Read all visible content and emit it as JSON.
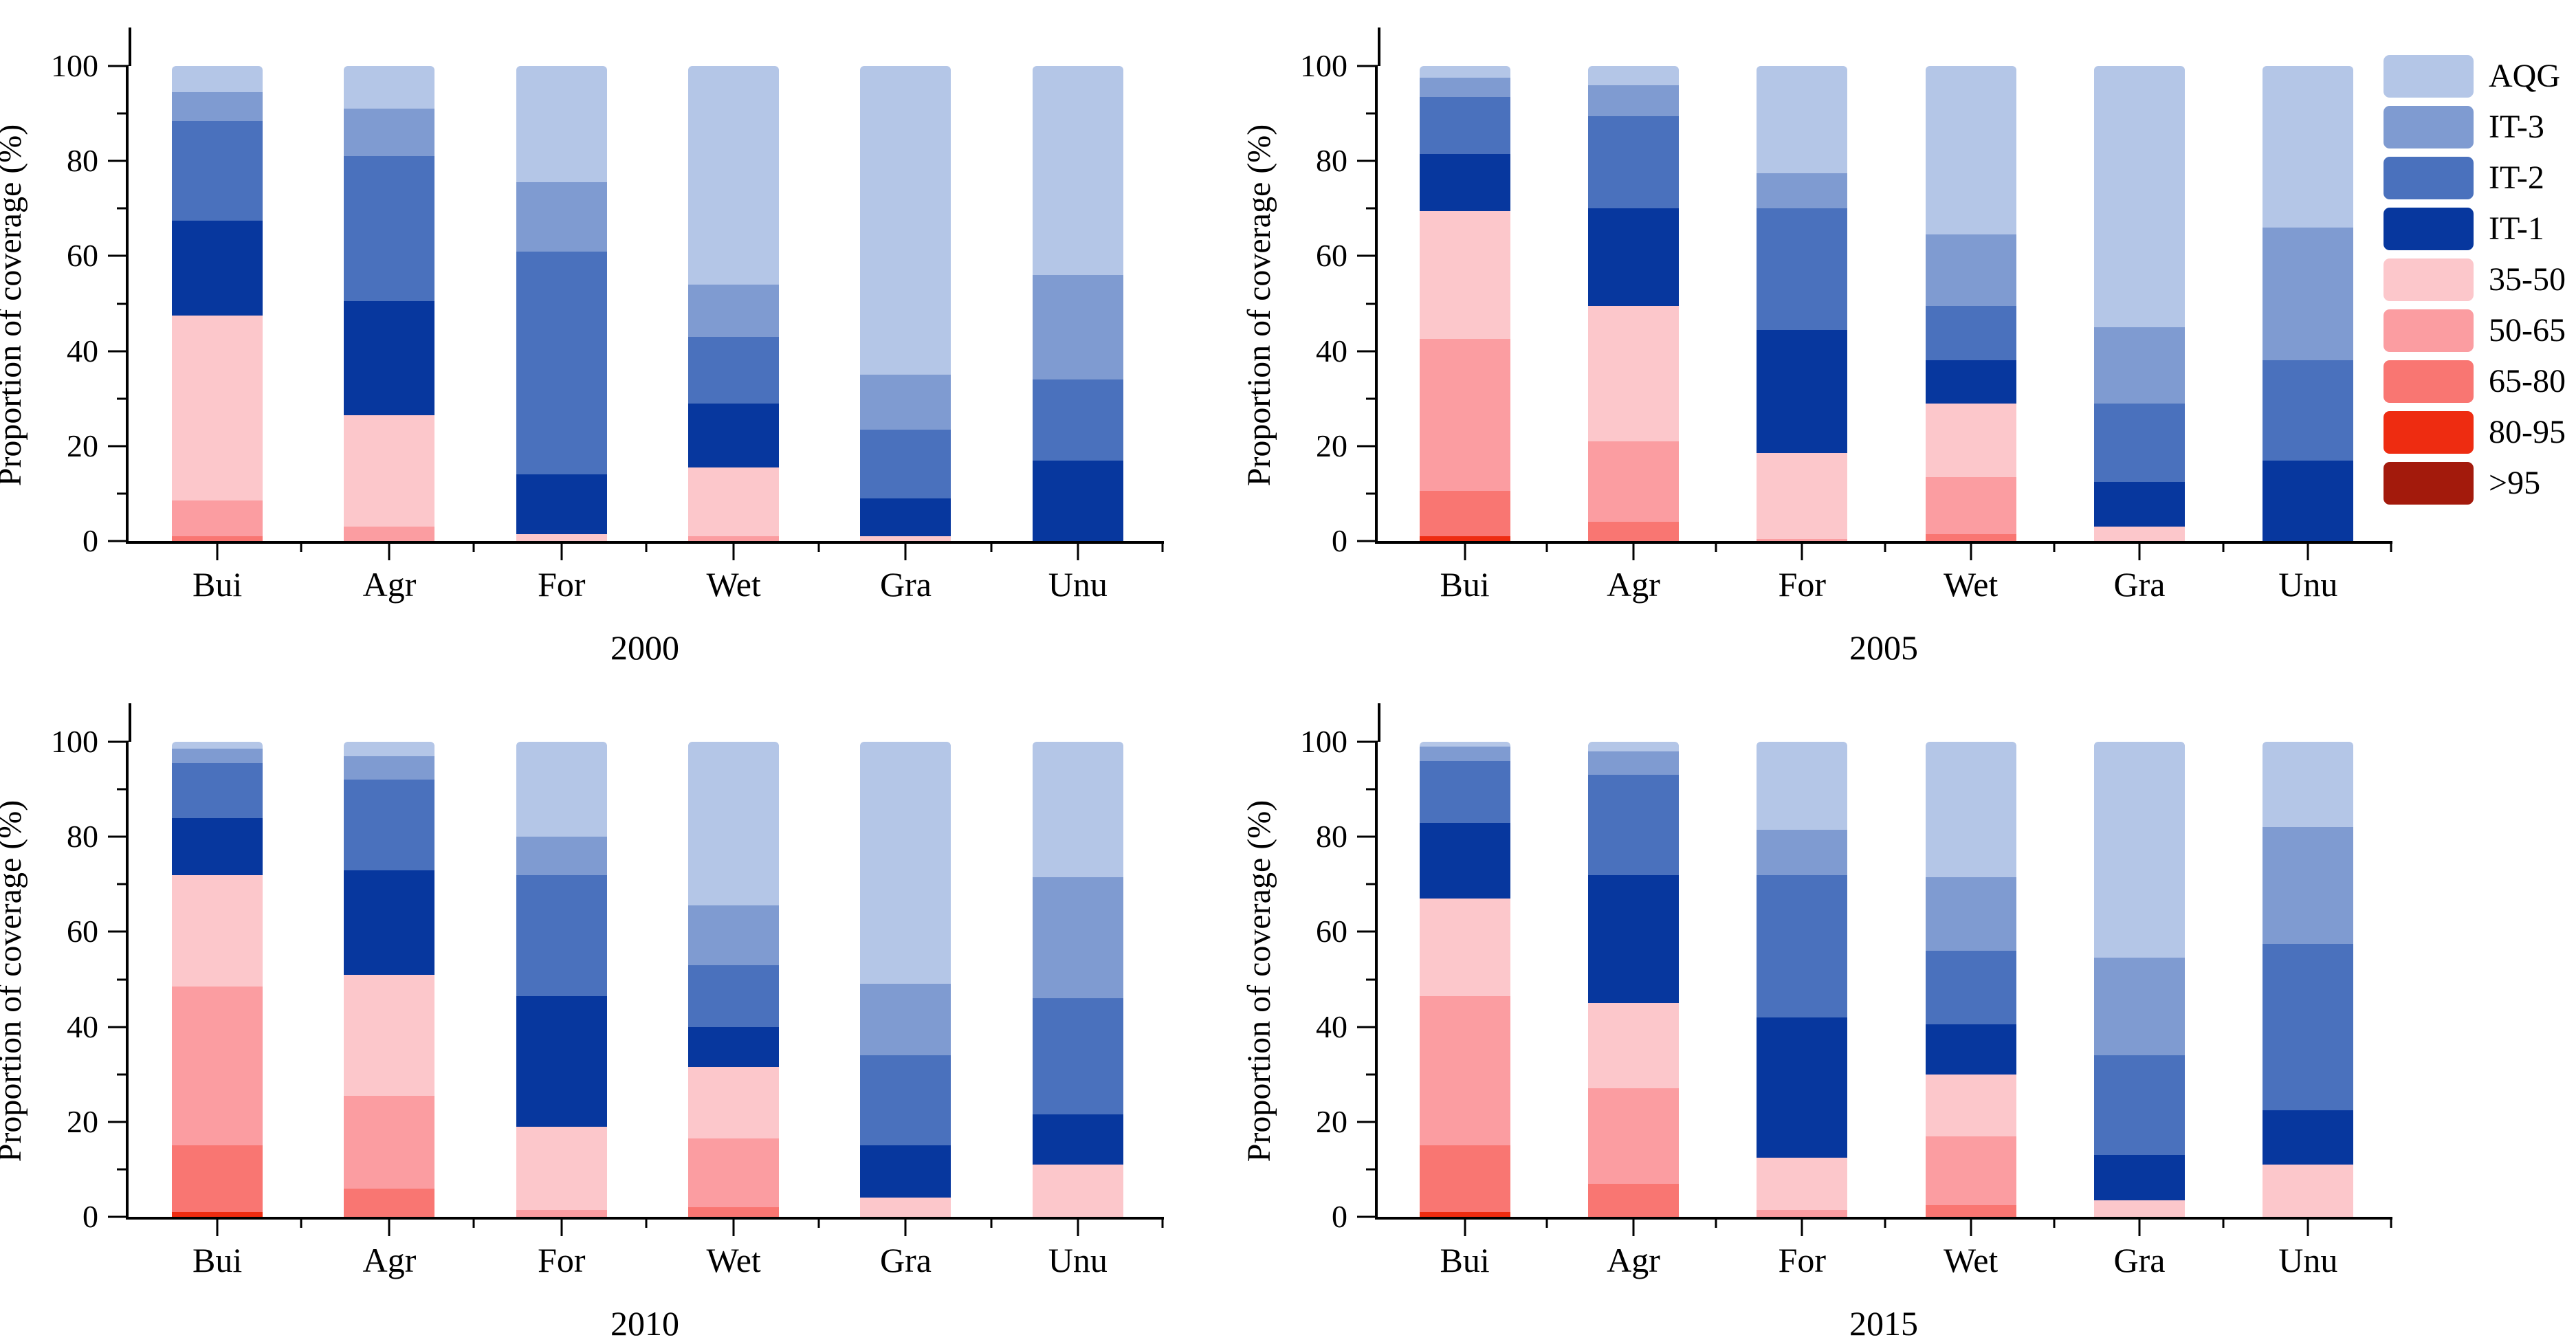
{
  "figure": {
    "ylabel": "Proportion of coverage (%)",
    "categories": [
      "Bui",
      "Agr",
      "For",
      "Wet",
      "Gra",
      "Unu"
    ],
    "yticks": [
      0,
      20,
      40,
      60,
      80,
      100
    ]
  },
  "colors": {
    "AQG": "#b4c6e7",
    "IT-3": "#7f9bd1",
    "IT-2": "#4a71bd",
    "IT-1": "#07379e",
    "35-50": "#fcc7cb",
    "50-65": "#fb9da1",
    "65-80": "#f97672",
    "80-95": "#ee2c11",
    ">95": "#a31a0c"
  },
  "legend": {
    "entries": [
      "AQG",
      "IT-3",
      "IT-2",
      "IT-1",
      "35-50",
      "50-65",
      "65-80",
      "80-95",
      ">95"
    ]
  },
  "chart_data": [
    {
      "type": "bar",
      "stacked": true,
      "year": "2000",
      "title": "2000",
      "xlabel": "",
      "ylabel": "Proportion of coverage (%)",
      "ylim": [
        0,
        100
      ],
      "yticks": [
        0,
        20,
        40,
        60,
        80,
        100
      ],
      "categories": [
        "Bui",
        "Agr",
        "For",
        "Wet",
        "Gra",
        "Unu"
      ],
      "series": [
        {
          "name": ">95",
          "values": [
            0,
            0,
            0,
            0,
            0,
            0
          ]
        },
        {
          "name": "80-95",
          "values": [
            0,
            0,
            0,
            0,
            0,
            0
          ]
        },
        {
          "name": "65-80",
          "values": [
            1,
            0,
            0,
            0,
            0,
            0
          ]
        },
        {
          "name": "50-65",
          "values": [
            7.5,
            3,
            0,
            1,
            0,
            0
          ]
        },
        {
          "name": "35-50",
          "values": [
            39,
            23.5,
            1.5,
            14.5,
            1,
            0
          ]
        },
        {
          "name": "IT-1",
          "values": [
            20,
            24,
            12.5,
            13.5,
            8,
            17
          ]
        },
        {
          "name": "IT-2",
          "values": [
            21,
            30.5,
            47,
            14,
            14.5,
            17
          ]
        },
        {
          "name": "IT-3",
          "values": [
            6,
            10,
            14.5,
            11,
            11.5,
            22
          ]
        },
        {
          "name": "AQG",
          "values": [
            5.5,
            9,
            24.5,
            46,
            65,
            44
          ]
        }
      ]
    },
    {
      "type": "bar",
      "stacked": true,
      "year": "2005",
      "title": "2005",
      "xlabel": "",
      "ylabel": "Proportion of coverage (%)",
      "ylim": [
        0,
        100
      ],
      "yticks": [
        0,
        20,
        40,
        60,
        80,
        100
      ],
      "categories": [
        "Bui",
        "Agr",
        "For",
        "Wet",
        "Gra",
        "Unu"
      ],
      "series": [
        {
          "name": ">95",
          "values": [
            0,
            0,
            0,
            0,
            0,
            0
          ]
        },
        {
          "name": "80-95",
          "values": [
            1,
            0,
            0,
            0,
            0,
            0
          ]
        },
        {
          "name": "65-80",
          "values": [
            9.5,
            4,
            0,
            1.5,
            0,
            0
          ]
        },
        {
          "name": "50-65",
          "values": [
            32,
            17,
            0.5,
            12,
            0,
            0
          ]
        },
        {
          "name": "35-50",
          "values": [
            27,
            28.5,
            18,
            15.5,
            3,
            0
          ]
        },
        {
          "name": "IT-1",
          "values": [
            12,
            20.5,
            26,
            9,
            9.5,
            17
          ]
        },
        {
          "name": "IT-2",
          "values": [
            12,
            19.5,
            25.5,
            11.5,
            16.5,
            21
          ]
        },
        {
          "name": "IT-3",
          "values": [
            4,
            6.5,
            7.5,
            15,
            16,
            28
          ]
        },
        {
          "name": "AQG",
          "values": [
            2.5,
            4,
            22.5,
            35.5,
            55,
            34
          ]
        }
      ]
    },
    {
      "type": "bar",
      "stacked": true,
      "year": "2010",
      "title": "2010",
      "xlabel": "",
      "ylabel": "Proportion of coverage (%)",
      "ylim": [
        0,
        100
      ],
      "yticks": [
        0,
        20,
        40,
        60,
        80,
        100
      ],
      "categories": [
        "Bui",
        "Agr",
        "For",
        "Wet",
        "Gra",
        "Unu"
      ],
      "series": [
        {
          "name": ">95",
          "values": [
            0,
            0,
            0,
            0,
            0,
            0
          ]
        },
        {
          "name": "80-95",
          "values": [
            1,
            0,
            0,
            0,
            0,
            0
          ]
        },
        {
          "name": "65-80",
          "values": [
            14,
            6,
            0,
            2,
            0,
            0
          ]
        },
        {
          "name": "50-65",
          "values": [
            33.5,
            19.5,
            1.5,
            14.5,
            0,
            0
          ]
        },
        {
          "name": "35-50",
          "values": [
            23.5,
            25.5,
            17.5,
            15,
            4,
            11
          ]
        },
        {
          "name": "IT-1",
          "values": [
            12,
            22,
            27.5,
            8.5,
            11,
            10.5
          ]
        },
        {
          "name": "IT-2",
          "values": [
            11.5,
            19,
            25.5,
            13,
            19,
            24.5
          ]
        },
        {
          "name": "IT-3",
          "values": [
            3,
            5,
            8,
            12.5,
            15,
            25.5
          ]
        },
        {
          "name": "AQG",
          "values": [
            1.5,
            3,
            20,
            34.5,
            51,
            28.5
          ]
        }
      ]
    },
    {
      "type": "bar",
      "stacked": true,
      "year": "2015",
      "title": "2015",
      "xlabel": "",
      "ylabel": "Proportion of coverage (%)",
      "ylim": [
        0,
        100
      ],
      "yticks": [
        0,
        20,
        40,
        60,
        80,
        100
      ],
      "categories": [
        "Bui",
        "Agr",
        "For",
        "Wet",
        "Gra",
        "Unu"
      ],
      "series": [
        {
          "name": ">95",
          "values": [
            0,
            0,
            0,
            0,
            0,
            0
          ]
        },
        {
          "name": "80-95",
          "values": [
            1,
            0,
            0,
            0,
            0,
            0
          ]
        },
        {
          "name": "65-80",
          "values": [
            14,
            7,
            0,
            2.5,
            0,
            0
          ]
        },
        {
          "name": "50-65",
          "values": [
            31.5,
            20,
            1.5,
            14.5,
            0,
            0
          ]
        },
        {
          "name": "35-50",
          "values": [
            20.5,
            18,
            11,
            13,
            3.5,
            11
          ]
        },
        {
          "name": "IT-1",
          "values": [
            16,
            27,
            29.5,
            10.5,
            9.5,
            11.5
          ]
        },
        {
          "name": "IT-2",
          "values": [
            13,
            21,
            30,
            15.5,
            21,
            35
          ]
        },
        {
          "name": "IT-3",
          "values": [
            3,
            5,
            9.5,
            15.5,
            20.5,
            24.5
          ]
        },
        {
          "name": "AQG",
          "values": [
            1,
            2,
            18.5,
            28.5,
            45.5,
            18
          ]
        }
      ]
    }
  ]
}
